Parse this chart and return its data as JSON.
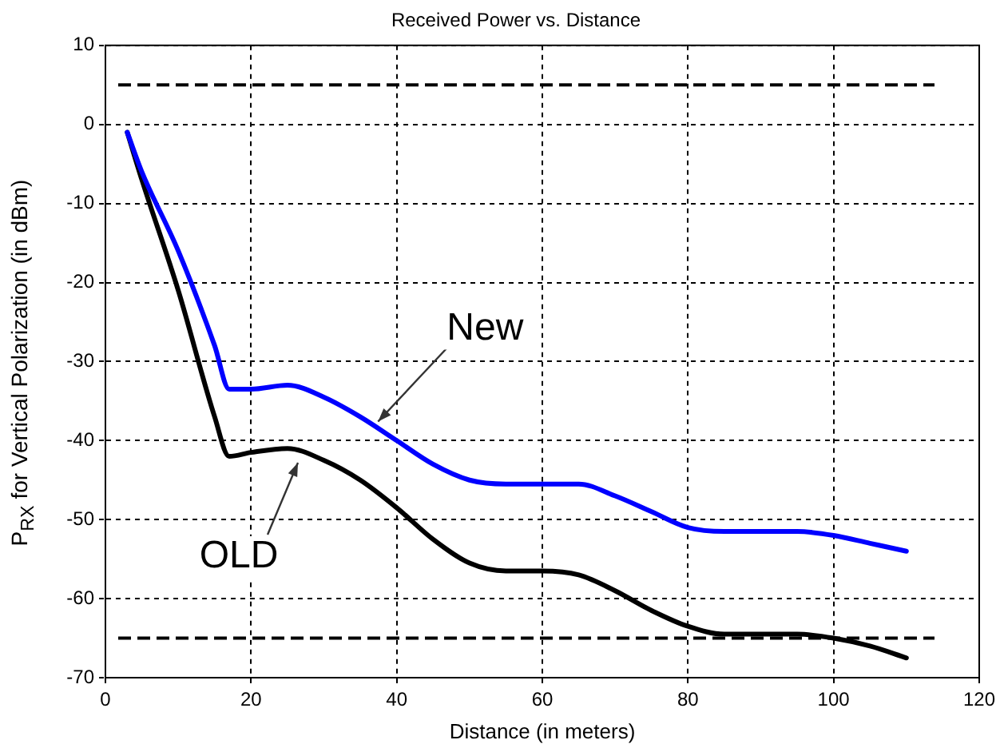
{
  "chart_data": {
    "type": "line",
    "title": "Received Power vs. Distance",
    "xlabel": "Distance (in meters)",
    "ylabel": "P$_{RX}$ for Vertical Polarization (in dBm)",
    "xlim": [
      0,
      120
    ],
    "xticks": [
      0,
      20,
      40,
      60,
      80,
      100,
      120
    ],
    "ylim": [
      -70,
      10
    ],
    "yticks": [
      -70,
      -60,
      -50,
      -40,
      -30,
      -20,
      -10,
      0,
      10
    ],
    "grid": true,
    "marker": "none",
    "line_style": "solid",
    "series": [
      {
        "color": "#0000ff",
        "x": [
          3,
          5,
          10,
          15,
          17,
          20,
          25,
          30,
          35,
          40,
          45,
          50,
          55,
          60,
          65,
          70,
          75,
          80,
          85,
          90,
          95,
          100,
          105,
          110
        ],
        "values": [
          -1,
          -6,
          -16,
          -28,
          -33.5,
          -33.5,
          -33,
          -34.5,
          -37,
          -40,
          -43,
          -45,
          -45.5,
          -45.5,
          -45.5,
          -47,
          -49,
          -51,
          -51.5,
          -51.5,
          -51.5,
          -52,
          -53,
          -54
        ]
      },
      {
        "color": "#000000",
        "x": [
          3,
          5,
          10,
          15,
          17,
          20,
          25,
          30,
          35,
          40,
          45,
          50,
          55,
          60,
          65,
          70,
          75,
          80,
          85,
          90,
          95,
          100,
          105,
          110
        ],
        "values": [
          -1,
          -7,
          -21,
          -37,
          -42,
          -41.5,
          -41,
          -42.5,
          -45,
          -48.5,
          -52.5,
          -55.5,
          -56.5,
          -56.5,
          -57,
          -59,
          -61.5,
          -63.5,
          -64.5,
          -64.5,
          -64.5,
          -65,
          -66,
          -67.5
        ]
      }
    ],
    "ref_lines": [
      {
        "axis": "y",
        "value": 5,
        "color": "#000000",
        "line_style": "dashed"
      },
      {
        "axis": "y",
        "value": -65,
        "color": "#000000",
        "line_style": "dashed"
      }
    ],
    "annotations": [
      {
        "text": "New",
        "x": 37,
        "y": -38
      },
      {
        "text": "OLD",
        "x": 26,
        "y": -42
      }
    ],
    "legend": false
  }
}
